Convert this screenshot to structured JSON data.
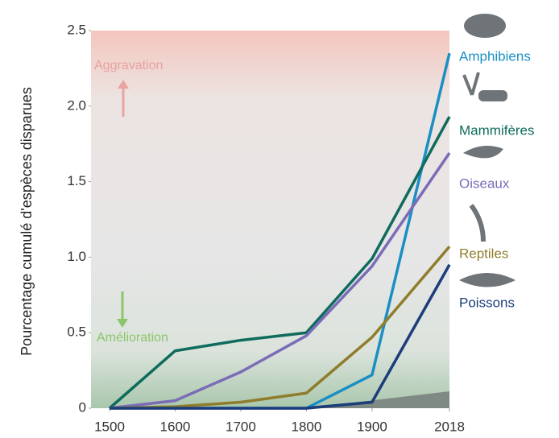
{
  "chart_data": {
    "type": "line",
    "y_label": "Pourcentage cumulé d'espèces disparues",
    "annotations": [
      "Aggravation",
      "Amélioration"
    ],
    "x": [
      1500,
      1600,
      1700,
      1800,
      1900,
      2018
    ],
    "xlim": [
      1500,
      2018
    ],
    "xticks": [
      1500,
      1600,
      1700,
      1800,
      1900,
      2018
    ],
    "ylim": [
      0,
      2.5
    ],
    "yticks": [
      0,
      0.5,
      {
        "value": 1,
        "label": "1.0"
      },
      1.5,
      {
        "value": 2,
        "label": "2.0"
      },
      2.5
    ],
    "series": [
      {
        "name": "Amphibiens",
        "color": "#1a8fc4",
        "values": [
          0,
          0,
          0,
          0,
          0.22,
          2.35
        ]
      },
      {
        "name": "Mammifères",
        "color": "#0f6b5c",
        "values": [
          0,
          0.38,
          0.45,
          0.5,
          0.99,
          1.93
        ]
      },
      {
        "name": "Oiseaux",
        "color": "#7b6cb8",
        "values": [
          0,
          0.05,
          0.24,
          0.48,
          0.94,
          1.69
        ]
      },
      {
        "name": "Reptiles",
        "color": "#8f7d2c",
        "values": [
          0,
          0.01,
          0.04,
          0.1,
          0.47,
          1.07
        ]
      },
      {
        "name": "Poissons",
        "color": "#1c3d7a",
        "values": [
          0,
          0,
          0,
          0,
          0.04,
          0.95
        ]
      }
    ]
  }
}
